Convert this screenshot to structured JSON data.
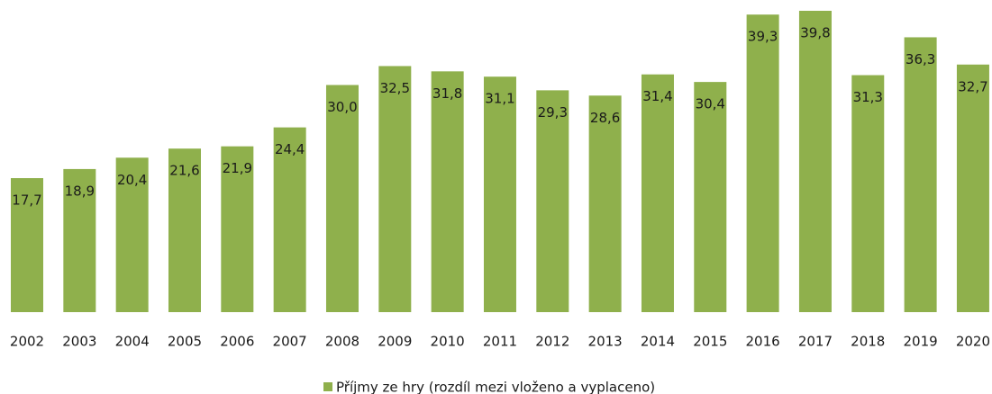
{
  "chart_data": {
    "type": "bar",
    "categories": [
      "2002",
      "2003",
      "2004",
      "2005",
      "2006",
      "2007",
      "2008",
      "2009",
      "2010",
      "2011",
      "2012",
      "2013",
      "2014",
      "2015",
      "2016",
      "2017",
      "2018",
      "2019",
      "2020"
    ],
    "series": [
      {
        "name": "Příjmy ze hry (rozdíl mezi vloženo a vyplaceno)",
        "color": "#8fb04c",
        "values": [
          17.7,
          18.9,
          20.4,
          21.6,
          21.9,
          24.4,
          30.0,
          32.5,
          31.8,
          31.1,
          29.3,
          28.6,
          31.4,
          30.4,
          39.3,
          39.8,
          31.3,
          36.3,
          32.7
        ],
        "value_labels": [
          "17,7",
          "18,9",
          "20,4",
          "21,6",
          "21,9",
          "24,4",
          "30,0",
          "32,5",
          "31,8",
          "31,1",
          "29,3",
          "28,6",
          "31,4",
          "30,4",
          "39,3",
          "39,8",
          "31,3",
          "36,3",
          "32,7"
        ]
      }
    ],
    "legend": "bottom"
  }
}
